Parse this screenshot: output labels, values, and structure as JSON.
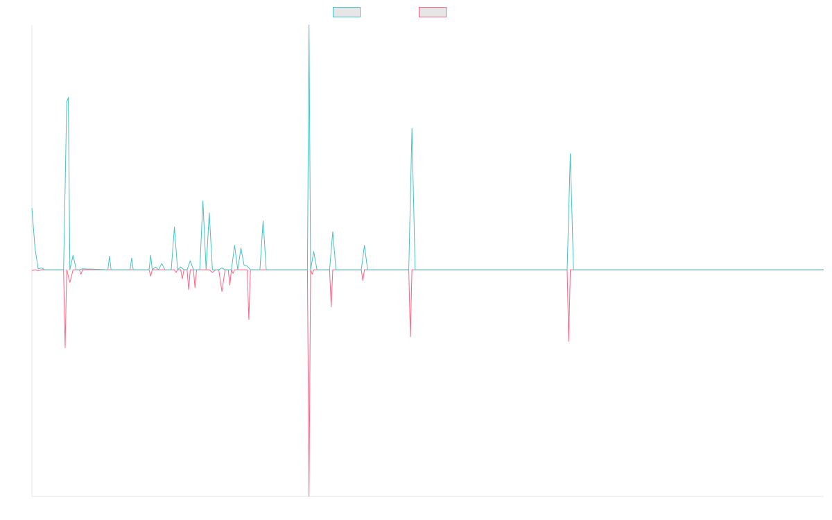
{
  "chart_data": {
    "type": "line",
    "title": "",
    "xlabel": "",
    "ylabel": "",
    "grid": false,
    "legend_placement": "top",
    "x_range": [
      0,
      250
    ],
    "ylim": [
      -25,
      27
    ],
    "series": [
      {
        "name": "",
        "color": "#4bc0c0",
        "points": [
          [
            0,
            6.8
          ],
          [
            1,
            2.3
          ],
          [
            2,
            0.1
          ],
          [
            3,
            0.2
          ],
          [
            4,
            0
          ],
          [
            10,
            0
          ],
          [
            11,
            18.5
          ],
          [
            11.5,
            19
          ],
          [
            12,
            0
          ],
          [
            13,
            1.6
          ],
          [
            14,
            0
          ],
          [
            15,
            0
          ],
          [
            16,
            0.1
          ],
          [
            24,
            0
          ],
          [
            24.5,
            1.5
          ],
          [
            25,
            0
          ],
          [
            31,
            0
          ],
          [
            31.5,
            1.3
          ],
          [
            32,
            0
          ],
          [
            37,
            0
          ],
          [
            37.5,
            1.6
          ],
          [
            38,
            0
          ],
          [
            39,
            0.3
          ],
          [
            40,
            0
          ],
          [
            41,
            0.7
          ],
          [
            42,
            0
          ],
          [
            44,
            0
          ],
          [
            45,
            4.7
          ],
          [
            46,
            0
          ],
          [
            47,
            0.3
          ],
          [
            48,
            0
          ],
          [
            49,
            0
          ],
          [
            50,
            1
          ],
          [
            51,
            0
          ],
          [
            53,
            0
          ],
          [
            54,
            7.6
          ],
          [
            55,
            0
          ],
          [
            56,
            6.3
          ],
          [
            57,
            0
          ],
          [
            59,
            0
          ],
          [
            60,
            0.2
          ],
          [
            61,
            0
          ],
          [
            63,
            0
          ],
          [
            64,
            2.7
          ],
          [
            65,
            0
          ],
          [
            66,
            2.4
          ],
          [
            67,
            0.5
          ],
          [
            68,
            0.4
          ],
          [
            69,
            0
          ],
          [
            72,
            0
          ],
          [
            73,
            5.4
          ],
          [
            74,
            0
          ],
          [
            87,
            0
          ],
          [
            87.5,
            27
          ],
          [
            88,
            0
          ],
          [
            89,
            2
          ],
          [
            90,
            0
          ],
          [
            94,
            0
          ],
          [
            95,
            4.2
          ],
          [
            96,
            0
          ],
          [
            104,
            0
          ],
          [
            105,
            2.7
          ],
          [
            106,
            0
          ],
          [
            119,
            0
          ],
          [
            120,
            15.6
          ],
          [
            121,
            0
          ],
          [
            169,
            0
          ],
          [
            170,
            12.8
          ],
          [
            171,
            0
          ],
          [
            250,
            0
          ]
        ]
      },
      {
        "name": "",
        "color": "#ff6384",
        "points": [
          [
            0,
            -0.1
          ],
          [
            1,
            0
          ],
          [
            2,
            -0.1
          ],
          [
            3,
            0
          ],
          [
            10,
            0
          ],
          [
            10.5,
            -8.6
          ],
          [
            11,
            0
          ],
          [
            12,
            -1.4
          ],
          [
            13,
            0
          ],
          [
            15,
            0
          ],
          [
            15.5,
            -0.5
          ],
          [
            16,
            0
          ],
          [
            37,
            0
          ],
          [
            37.5,
            -0.7
          ],
          [
            38,
            0
          ],
          [
            45,
            0
          ],
          [
            45.5,
            -0.3
          ],
          [
            46,
            0
          ],
          [
            47,
            0
          ],
          [
            47.5,
            -1
          ],
          [
            48,
            0
          ],
          [
            49,
            0
          ],
          [
            49.5,
            -2.2
          ],
          [
            50,
            0
          ],
          [
            51,
            0
          ],
          [
            51.5,
            -2
          ],
          [
            52,
            0
          ],
          [
            56,
            0
          ],
          [
            57,
            -0.3
          ],
          [
            58,
            0
          ],
          [
            59,
            0
          ],
          [
            60,
            -2.4
          ],
          [
            61,
            0
          ],
          [
            62,
            0
          ],
          [
            62.5,
            -1.7
          ],
          [
            63,
            0
          ],
          [
            63.5,
            -0.4
          ],
          [
            64,
            0
          ],
          [
            68,
            0
          ],
          [
            68.5,
            -5.5
          ],
          [
            69,
            0
          ],
          [
            87,
            0
          ],
          [
            87.5,
            -25
          ],
          [
            88,
            0
          ],
          [
            88.5,
            -0.5
          ],
          [
            89,
            0
          ],
          [
            94,
            0
          ],
          [
            94.5,
            -4.1
          ],
          [
            95,
            0
          ],
          [
            104,
            0
          ],
          [
            104.5,
            -1.2
          ],
          [
            105,
            0
          ],
          [
            119,
            0
          ],
          [
            119.5,
            -7.4
          ],
          [
            120,
            0
          ],
          [
            169,
            0
          ],
          [
            169.5,
            -7.9
          ],
          [
            170,
            0
          ],
          [
            250,
            0
          ]
        ]
      }
    ]
  }
}
